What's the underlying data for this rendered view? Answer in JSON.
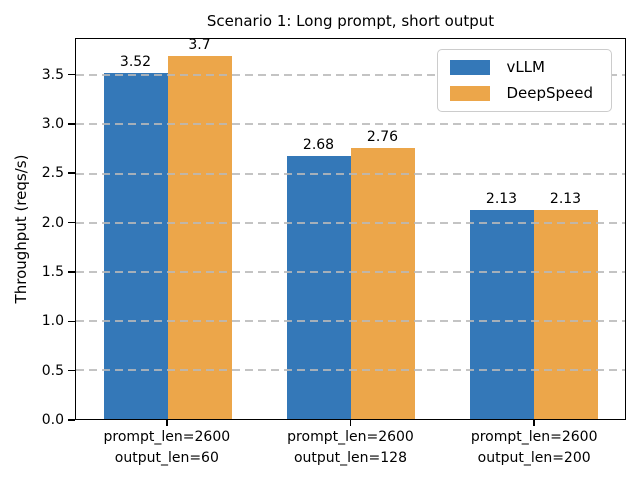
{
  "chart_data": {
    "type": "bar",
    "title": "Scenario 1: Long prompt, short output",
    "xlabel": "",
    "ylabel": "Throughput (reqs/s)",
    "categories": [
      "prompt_len=2600\noutput_len=60",
      "prompt_len=2600\noutput_len=128",
      "prompt_len=2600\noutput_len=200"
    ],
    "series": [
      {
        "name": "vLLM",
        "color": "#3478b8",
        "values": [
          3.52,
          2.68,
          2.13
        ],
        "labels": [
          "3.52",
          "2.68",
          "2.13"
        ]
      },
      {
        "name": "DeepSpeed",
        "color": "#eca64a",
        "values": [
          3.7,
          2.76,
          2.13
        ],
        "labels": [
          "3.7",
          "2.76",
          "2.13"
        ]
      }
    ],
    "yticks": [
      "0.0",
      "0.5",
      "1.0",
      "1.5",
      "2.0",
      "2.5",
      "3.0",
      "3.5"
    ],
    "ylim": [
      0,
      3.87
    ],
    "grid": "dashed-horizontal-above-bars",
    "legend_position": "upper right",
    "colors": {
      "grid": "#b9b9b9",
      "spine": "#000000",
      "background": "#ffffff"
    }
  }
}
